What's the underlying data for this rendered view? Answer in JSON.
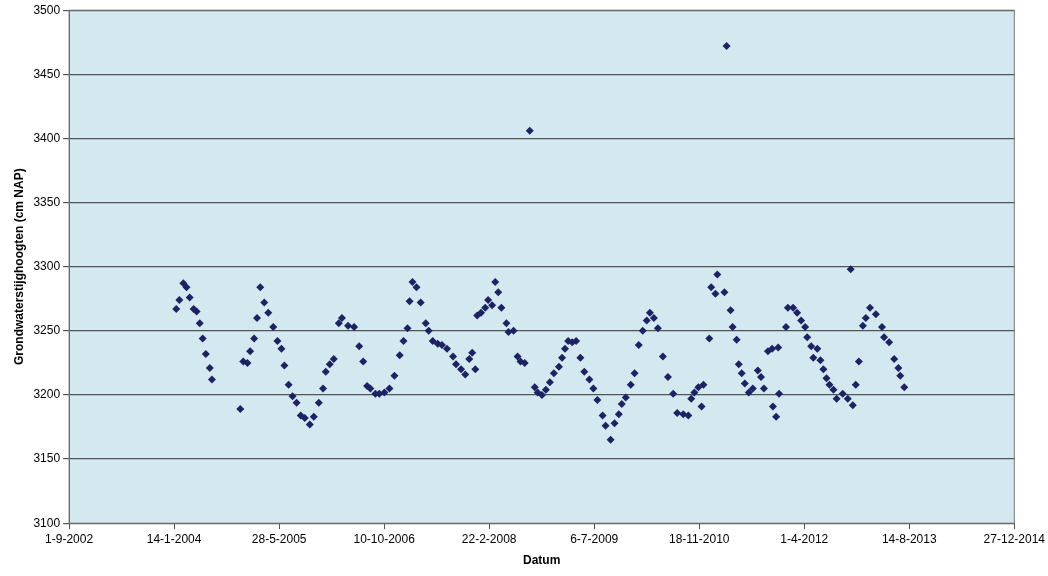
{
  "chart_data": {
    "type": "scatter",
    "xlabel": "Datum",
    "ylabel": "Grondwaterstijghoogten (cm NAP)",
    "marker": "diamond",
    "grid": "y",
    "legend": false,
    "xlim": [
      "2002-09-01",
      "2014-12-27"
    ],
    "xticks": [
      {
        "value": "2002-09-01",
        "label": "1-9-2002"
      },
      {
        "value": "2004-01-14",
        "label": "14-1-2004"
      },
      {
        "value": "2005-05-28",
        "label": "28-5-2005"
      },
      {
        "value": "2006-10-10",
        "label": "10-10-2006"
      },
      {
        "value": "2008-02-22",
        "label": "22-2-2008"
      },
      {
        "value": "2009-07-06",
        "label": "6-7-2009"
      },
      {
        "value": "2010-11-18",
        "label": "18-11-2010"
      },
      {
        "value": "2012-04-01",
        "label": "1-4-2012"
      },
      {
        "value": "2013-08-14",
        "label": "14-8-2013"
      },
      {
        "value": "2014-12-27",
        "label": "27-12-2014"
      }
    ],
    "ylim": [
      3100,
      3500
    ],
    "yticks": [
      3100,
      3150,
      3200,
      3250,
      3300,
      3350,
      3400,
      3450,
      3500
    ],
    "series": [
      {
        "color": "#1c2263",
        "x": [
          "2004-01-24",
          "2004-02-08",
          "2004-02-27",
          "2004-03-13",
          "2004-03-28",
          "2004-04-16",
          "2004-04-30",
          "2004-05-15",
          "2004-05-29",
          "2004-06-13",
          "2004-07-02",
          "2004-07-12",
          "2004-11-24",
          "2004-12-08",
          "2004-12-28",
          "2005-01-10",
          "2005-01-29",
          "2005-02-12",
          "2005-02-27",
          "2005-03-18",
          "2005-04-06",
          "2005-04-30",
          "2005-05-20",
          "2005-06-08",
          "2005-06-22",
          "2005-07-12",
          "2005-07-31",
          "2005-08-19",
          "2005-09-08",
          "2005-09-27",
          "2005-10-21",
          "2005-11-09",
          "2005-12-03",
          "2005-12-23",
          "2006-01-05",
          "2006-01-24",
          "2006-02-12",
          "2006-03-08",
          "2006-03-23",
          "2006-04-21",
          "2006-05-20",
          "2006-06-13",
          "2006-07-02",
          "2006-07-21",
          "2006-08-05",
          "2006-08-29",
          "2006-09-17",
          "2006-10-11",
          "2006-11-04",
          "2006-11-28",
          "2006-12-23",
          "2007-01-10",
          "2007-01-29",
          "2007-02-08",
          "2007-02-22",
          "2007-03-13",
          "2007-04-02",
          "2007-04-26",
          "2007-05-10",
          "2007-05-29",
          "2007-06-22",
          "2007-07-12",
          "2007-08-05",
          "2007-09-03",
          "2007-09-17",
          "2007-10-11",
          "2007-10-31",
          "2007-11-19",
          "2007-12-03",
          "2007-12-18",
          "2007-12-27",
          "2008-01-14",
          "2008-02-03",
          "2008-02-17",
          "2008-03-07",
          "2008-03-22",
          "2008-04-05",
          "2008-04-20",
          "2008-05-14",
          "2008-05-24",
          "2008-06-17",
          "2008-07-06",
          "2008-07-20",
          "2008-08-09",
          "2008-09-02",
          "2008-09-26",
          "2008-10-10",
          "2008-10-30",
          "2008-11-18",
          "2008-12-07",
          "2008-12-26",
          "2009-01-19",
          "2009-02-03",
          "2009-02-17",
          "2009-03-04",
          "2009-03-23",
          "2009-04-11",
          "2009-05-01",
          "2009-05-20",
          "2009-06-13",
          "2009-07-02",
          "2009-07-21",
          "2009-08-15",
          "2009-08-29",
          "2009-09-22",
          "2009-10-11",
          "2009-10-31",
          "2009-11-14",
          "2009-12-03",
          "2009-12-27",
          "2010-01-14",
          "2010-02-03",
          "2010-02-22",
          "2010-03-13",
          "2010-03-28",
          "2010-04-16",
          "2010-05-05",
          "2010-05-29",
          "2010-06-22",
          "2010-07-17",
          "2010-08-05",
          "2010-09-03",
          "2010-09-27",
          "2010-10-11",
          "2010-10-26",
          "2010-11-14",
          "2010-11-29",
          "2010-12-08",
          "2011-01-05",
          "2011-01-14",
          "2011-02-03",
          "2011-02-12",
          "2011-03-18",
          "2011-03-28",
          "2011-04-16",
          "2011-04-26",
          "2011-05-15",
          "2011-05-25",
          "2011-06-08",
          "2011-06-23",
          "2011-07-12",
          "2011-07-31",
          "2011-08-24",
          "2011-09-08",
          "2011-09-22",
          "2011-10-11",
          "2011-10-31",
          "2011-11-04",
          "2011-11-19",
          "2011-11-29",
          "2011-12-03",
          "2012-01-05",
          "2012-01-14",
          "2012-02-08",
          "2012-02-27",
          "2012-03-17",
          "2012-04-05",
          "2012-04-15",
          "2012-05-04",
          "2012-05-14",
          "2012-06-02",
          "2012-06-17",
          "2012-07-01",
          "2012-07-16",
          "2012-07-30",
          "2012-08-18",
          "2012-09-02",
          "2012-10-01",
          "2012-10-25",
          "2012-11-08",
          "2012-11-18",
          "2012-12-02",
          "2012-12-17",
          "2013-01-05",
          "2013-01-19",
          "2013-02-08",
          "2013-03-08",
          "2013-04-06",
          "2013-04-16",
          "2013-05-10",
          "2013-06-03",
          "2013-06-23",
          "2013-07-02",
          "2013-07-21"
        ],
        "values": [
          3267,
          3274,
          3287,
          3284,
          3276,
          3267,
          3265,
          3256,
          3244,
          3232,
          3221,
          3212,
          3189,
          3226,
          3225,
          3234,
          3244,
          3260,
          3284,
          3272,
          3264,
          3253,
          3242,
          3236,
          3223,
          3208,
          3199,
          3194,
          3184,
          3182,
          3177,
          3183,
          3194,
          3205,
          3218,
          3224,
          3228,
          3256,
          3260,
          3254,
          3253,
          3238,
          3226,
          3207,
          3205,
          3201,
          3201,
          3202,
          3205,
          3215,
          3231,
          3242,
          3252,
          3273,
          3288,
          3284,
          3272,
          3256,
          3250,
          3242,
          3240,
          3239,
          3236,
          3230,
          3224,
          3220,
          3216,
          3228,
          3233,
          3220,
          3262,
          3264,
          3268,
          3274,
          3270,
          3288,
          3280,
          3268,
          3256,
          3249,
          3250,
          3230,
          3226,
          3225,
          3406,
          3206,
          3202,
          3200,
          3204,
          3210,
          3217,
          3222,
          3229,
          3236,
          3242,
          3241,
          3242,
          3229,
          3218,
          3212,
          3205,
          3196,
          3184,
          3176,
          3165,
          3178,
          3185,
          3193,
          3198,
          3208,
          3217,
          3239,
          3250,
          3258,
          3264,
          3260,
          3252,
          3230,
          3214,
          3201,
          3186,
          3185,
          3184,
          3197,
          3202,
          3206,
          3191,
          3208,
          3244,
          3284,
          3279,
          3294,
          3280,
          3472,
          3266,
          3253,
          3243,
          3224,
          3217,
          3209,
          3202,
          3205,
          3219,
          3214,
          3205,
          3234,
          3236,
          3191,
          3183,
          3237,
          3201,
          3253,
          3268,
          3268,
          3264,
          3258,
          3253,
          3245,
          3238,
          3229,
          3236,
          3227,
          3220,
          3213,
          3208,
          3204,
          3197,
          3201,
          3197,
          3298,
          3192,
          3208,
          3226,
          3254,
          3260,
          3268,
          3263,
          3253,
          3245,
          3241,
          3228,
          3221,
          3215,
          3206
        ]
      }
    ]
  }
}
